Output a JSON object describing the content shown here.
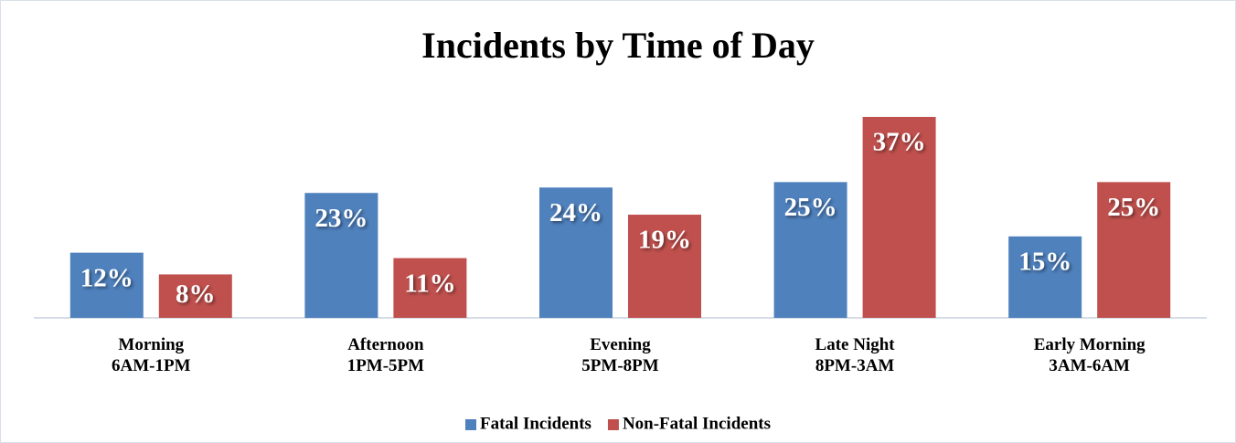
{
  "chart_data": {
    "type": "bar",
    "title": "Incidents by Time of Day",
    "categories": [
      "Morning\n6AM-1PM",
      "Afternoon\n1PM-5PM",
      "Evening\n5PM-8PM",
      "Late Night\n8PM-3AM",
      "Early Morning\n3AM-6AM"
    ],
    "series": [
      {
        "name": "Fatal Incidents",
        "color": "#4f81bd",
        "values": [
          12,
          23,
          24,
          25,
          15
        ],
        "value_labels": [
          "12%",
          "23%",
          "24%",
          "25%",
          "15%"
        ]
      },
      {
        "name": "Non-Fatal Incidents",
        "color": "#c0504d",
        "values": [
          8,
          11,
          19,
          37,
          25
        ],
        "value_labels": [
          "8%",
          "11%",
          "19%",
          "37%",
          "25%"
        ]
      }
    ],
    "legend": "bottom"
  }
}
